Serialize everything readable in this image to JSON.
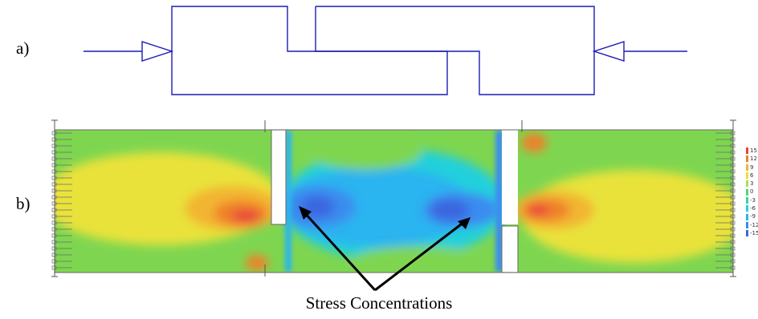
{
  "labels": {
    "a": "a)",
    "b": "b)"
  },
  "annotation": {
    "text": "Stress Concentrations"
  },
  "legend": {
    "items": [
      {
        "value": "15",
        "color": "#e8453a"
      },
      {
        "value": "12",
        "color": "#f0802c"
      },
      {
        "value": "9",
        "color": "#f2b530"
      },
      {
        "value": "6",
        "color": "#e9e23a"
      },
      {
        "value": "3",
        "color": "#aee04a"
      },
      {
        "value": "0",
        "color": "#4fd86a"
      },
      {
        "value": "-3",
        "color": "#2ed6a8"
      },
      {
        "value": "-6",
        "color": "#24d0dc"
      },
      {
        "value": "-9",
        "color": "#2ab4f0"
      },
      {
        "value": "-12",
        "color": "#3a8cf0"
      },
      {
        "value": "-15",
        "color": "#3a66e0"
      }
    ]
  },
  "colors": {
    "outline": "#1c1cb4",
    "arrow": "#000000"
  }
}
